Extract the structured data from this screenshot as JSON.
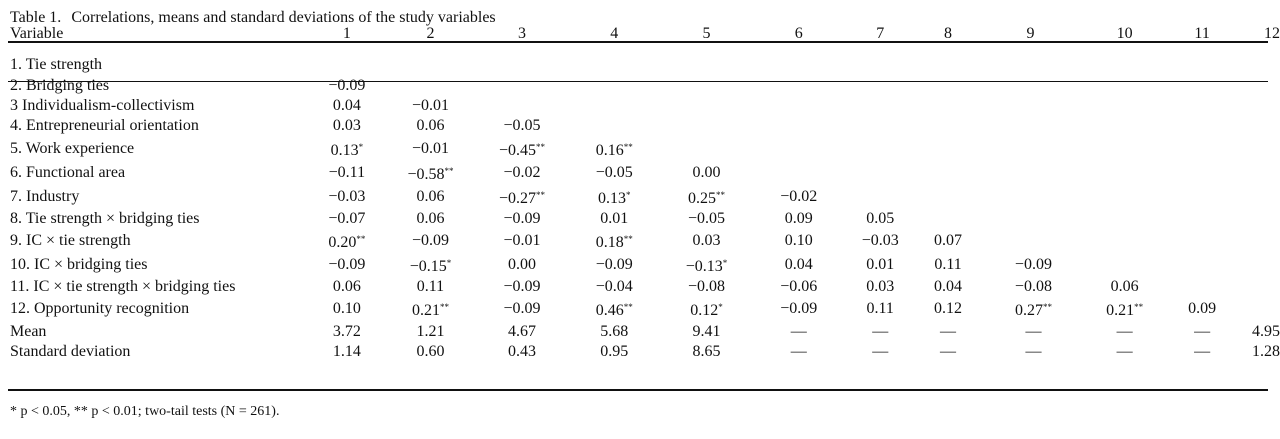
{
  "caption": {
    "label": "Table 1.",
    "title": "Correlations, means and standard deviations of the study variables"
  },
  "header": {
    "variable": "Variable",
    "columns": [
      "1",
      "2",
      "3",
      "4",
      "5",
      "6",
      "7",
      "8",
      "9",
      "10",
      "11",
      "12"
    ]
  },
  "rows": [
    {
      "label": "1. Tie strength",
      "cells": [
        "",
        "",
        "",
        "",
        "",
        "",
        "",
        "",
        "",
        "",
        "",
        ""
      ]
    },
    {
      "label": "2. Bridging ties",
      "cells": [
        "−0.09",
        "",
        "",
        "",
        "",
        "",
        "",
        "",
        "",
        "",
        "",
        ""
      ]
    },
    {
      "label": "3 Individualism-collectivism",
      "cells": [
        "0.04",
        "−0.01",
        "",
        "",
        "",
        "",
        "",
        "",
        "",
        "",
        "",
        ""
      ]
    },
    {
      "label": "4. Entrepreneurial orientation",
      "cells": [
        "0.03",
        "0.06",
        "−0.05",
        "",
        "",
        "",
        "",
        "",
        "",
        "",
        "",
        ""
      ]
    },
    {
      "label": "5. Work experience",
      "cells": [
        "0.13*",
        "−0.01",
        "−0.45**",
        "0.16**",
        "",
        "",
        "",
        "",
        "",
        "",
        "",
        ""
      ]
    },
    {
      "label": "6. Functional area",
      "cells": [
        "−0.11",
        "−0.58**",
        "−0.02",
        "−0.05",
        "0.00",
        "",
        "",
        "",
        "",
        "",
        "",
        ""
      ]
    },
    {
      "label": "7. Industry",
      "cells": [
        "−0.03",
        "0.06",
        "−0.27**",
        "0.13*",
        "0.25**",
        "−0.02",
        "",
        "",
        "",
        "",
        "",
        ""
      ]
    },
    {
      "label": "8. Tie strength × bridging ties",
      "cells": [
        "−0.07",
        "0.06",
        "−0.09",
        "0.01",
        "−0.05",
        "0.09",
        "0.05",
        "",
        "",
        "",
        "",
        ""
      ]
    },
    {
      "label": "9. IC × tie strength",
      "cells": [
        "0.20**",
        "−0.09",
        "−0.01",
        "0.18**",
        "0.03",
        "0.10",
        "−0.03",
        "0.07",
        "",
        "",
        "",
        ""
      ]
    },
    {
      "label": "10. IC × bridging ties",
      "cells": [
        "−0.09",
        "−0.15*",
        "0.00",
        "−0.09",
        "−0.13*",
        "0.04",
        "0.01",
        "0.11",
        "−0.09",
        "",
        "",
        ""
      ]
    },
    {
      "label": "11. IC × tie strength × bridging ties",
      "cells": [
        "0.06",
        "0.11",
        "−0.09",
        "−0.04",
        "−0.08",
        "−0.06",
        "0.03",
        "0.04",
        "−0.08",
        "0.06",
        "",
        ""
      ]
    },
    {
      "label": "12. Opportunity recognition",
      "cells": [
        "0.10",
        "0.21**",
        "−0.09",
        "0.46**",
        "0.12*",
        "−0.09",
        "0.11",
        "0.12",
        "0.27**",
        "0.21**",
        "0.09",
        ""
      ]
    },
    {
      "label": "Mean",
      "cells": [
        "3.72",
        "1.21",
        "4.67",
        "5.68",
        "9.41",
        "—",
        "—",
        "—",
        "—",
        "—",
        "—",
        "4.95"
      ]
    },
    {
      "label": "Standard deviation",
      "cells": [
        "1.14",
        "0.60",
        "0.43",
        "0.95",
        "8.65",
        "—",
        "—",
        "—",
        "—",
        "—",
        "—",
        "1.28"
      ]
    }
  ],
  "footnote": "* p < 0.05, ** p < 0.01; two-tail tests (N = 261)."
}
